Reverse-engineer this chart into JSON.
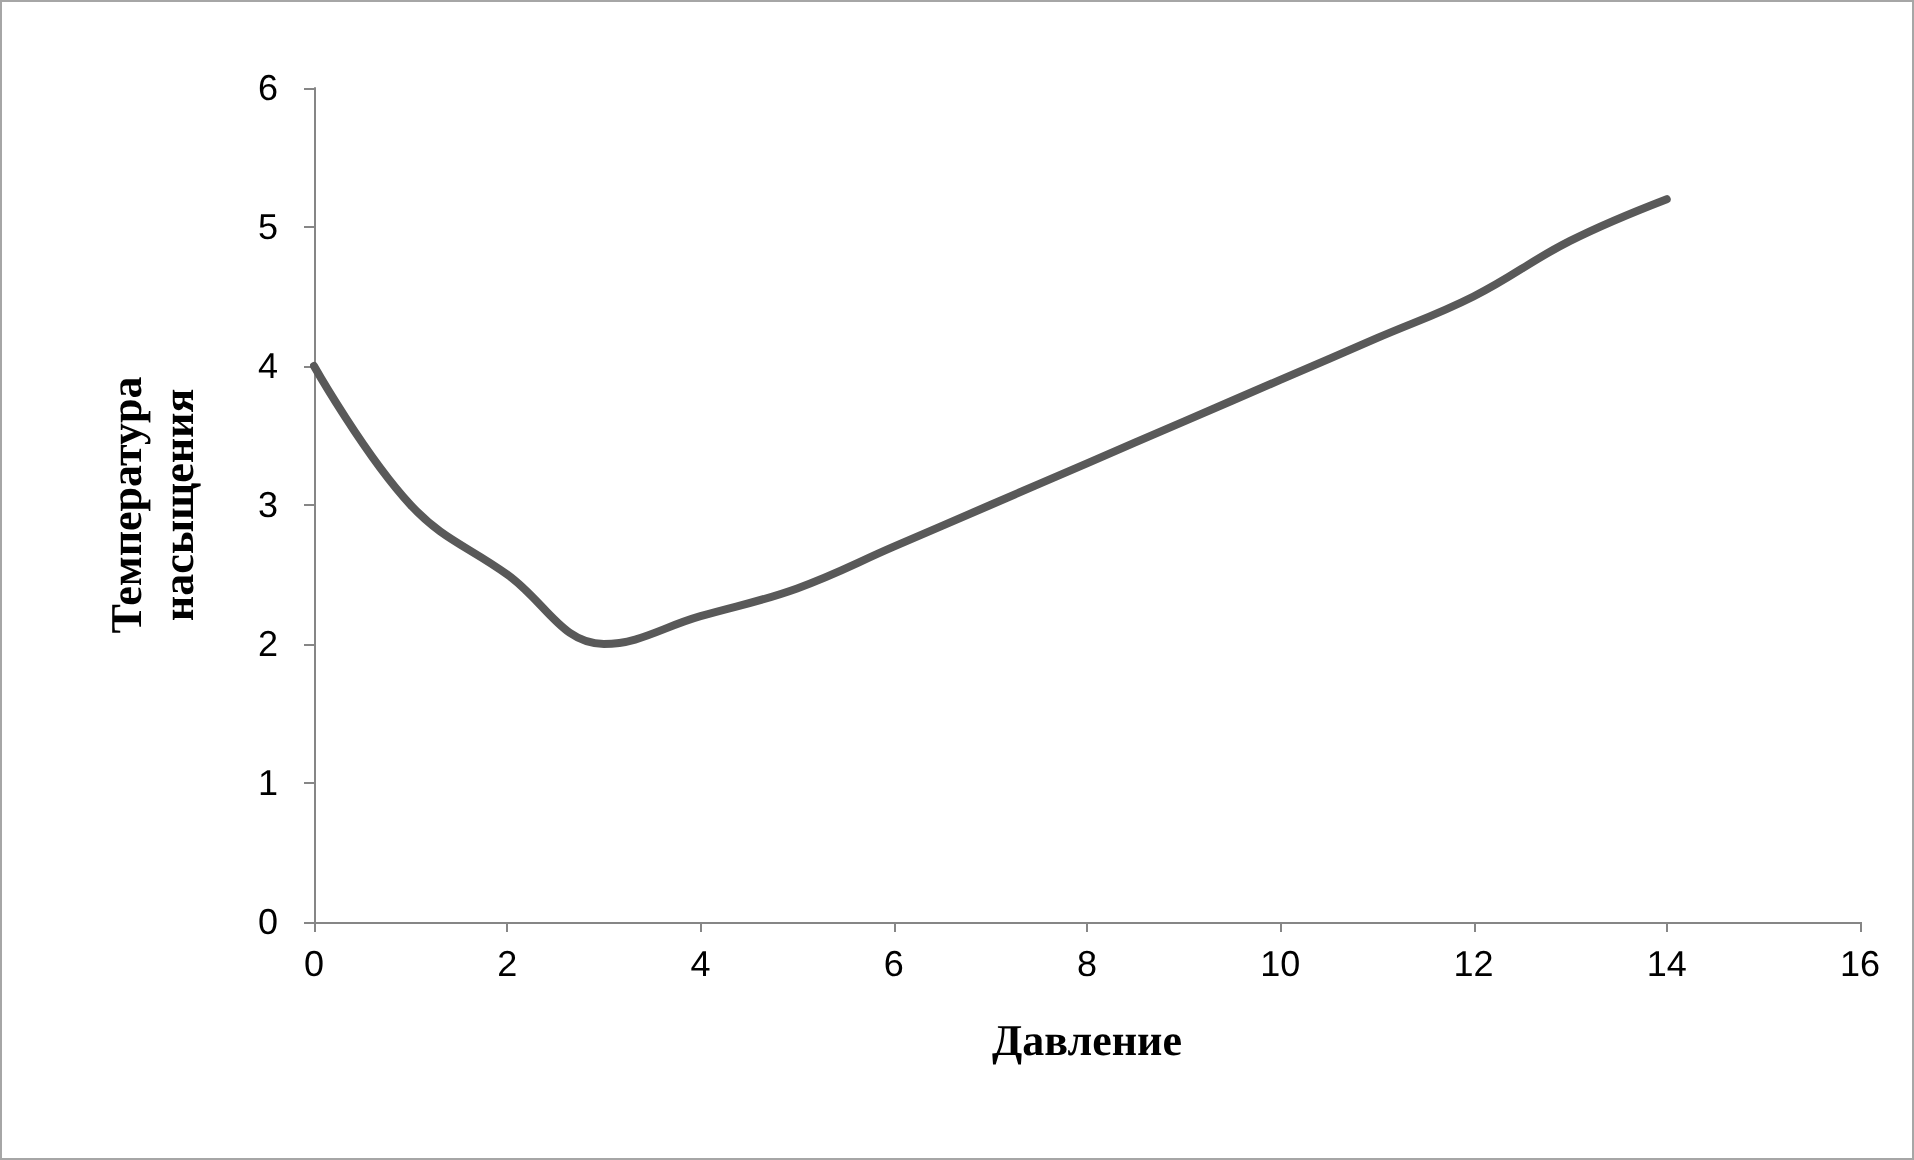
{
  "chart_data": {
    "type": "line",
    "xlabel": "Давление",
    "ylabel": "Температура\nнасыщения",
    "x": [
      0,
      1,
      2,
      3,
      4,
      5,
      6,
      7,
      8,
      9,
      10,
      11,
      12,
      13,
      14
    ],
    "series": [
      {
        "color": "#595959",
        "values": [
          4,
          3,
          2.5,
          2,
          2.2,
          2.4,
          2.7,
          3,
          3.3,
          3.6,
          3.9,
          4.2,
          4.5,
          4.9,
          5.2
        ]
      }
    ],
    "xlim": [
      0,
      16
    ],
    "xticks": [
      0,
      2,
      4,
      6,
      8,
      10,
      12,
      14,
      16
    ],
    "ylim": [
      0,
      6
    ],
    "yticks": [
      0,
      1,
      2,
      3,
      4,
      5,
      6
    ],
    "grid": false,
    "marker": "none",
    "line_style": "solid"
  }
}
